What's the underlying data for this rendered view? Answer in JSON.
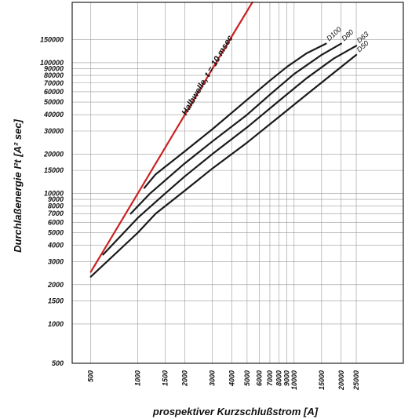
{
  "chart_data": {
    "type": "line",
    "xlabel": "prospektiver Kurzschlußstrom [A]",
    "ylabel": "Durchlaßenergie I²t [A² sec]",
    "xscale": "log",
    "yscale": "log",
    "xlim": [
      380,
      50000
    ],
    "ylim": [
      500,
      290000
    ],
    "grid": true,
    "x_ticks": [
      500,
      1000,
      1500,
      2000,
      3000,
      4000,
      5000,
      6000,
      7000,
      8000,
      9000,
      10000,
      15000,
      20000,
      25000
    ],
    "x_tick_labels": [
      "500",
      "1000",
      "1500",
      "2000",
      "3000",
      "4000",
      "5000",
      "6000",
      "7000",
      "8000",
      "9000",
      "10000",
      "15000",
      "20000",
      "25000"
    ],
    "y_ticks": [
      500,
      1000,
      1500,
      2000,
      3000,
      4000,
      5000,
      6000,
      7000,
      8000,
      9000,
      10000,
      15000,
      20000,
      30000,
      40000,
      50000,
      60000,
      70000,
      80000,
      90000,
      100000,
      150000
    ],
    "y_tick_labels": [
      "500",
      "1000",
      "1500",
      "2000",
      "3000",
      "4000",
      "5000",
      "6000",
      "7000",
      "8000",
      "9000",
      "10000",
      "15000",
      "20000",
      "30000",
      "40000",
      "50000",
      "60000",
      "70000",
      "80000",
      "90000",
      "100000",
      "150000"
    ],
    "colors": {
      "halbwelle": "#cc2222",
      "curves": "#1a1a1a",
      "grid": "#9a9a9a"
    },
    "series": [
      {
        "name": "Halbwelle, t = 10 msec",
        "x": [
          500,
          1000,
          2000,
          4000,
          5500
        ],
        "y": [
          2500,
          10000,
          40000,
          160000,
          300000
        ]
      },
      {
        "name": "D100",
        "x": [
          1100,
          1300,
          2000,
          3000,
          5000,
          7000,
          9000,
          12000,
          16000
        ],
        "y": [
          11000,
          14000,
          21000,
          31000,
          52000,
          73000,
          93000,
          118000,
          140000
        ]
      },
      {
        "name": "D80",
        "x": [
          900,
          1200,
          2000,
          3000,
          5000,
          7000,
          10000,
          15000,
          20000
        ],
        "y": [
          7000,
          10000,
          17000,
          25000,
          40000,
          57000,
          82000,
          115000,
          140000
        ]
      },
      {
        "name": "D63",
        "x": [
          600,
          1000,
          1500,
          2000,
          3000,
          5000,
          8000,
          12000,
          18000,
          25000
        ],
        "y": [
          3400,
          6500,
          10000,
          13500,
          20000,
          32000,
          51000,
          76000,
          108000,
          135000
        ]
      },
      {
        "name": "D50",
        "x": [
          500,
          1000,
          1300,
          2000,
          3000,
          5000,
          8000,
          12000,
          18000,
          25000
        ],
        "y": [
          2300,
          5000,
          7000,
          10500,
          15500,
          24500,
          38500,
          57000,
          84000,
          115000
        ]
      }
    ]
  }
}
